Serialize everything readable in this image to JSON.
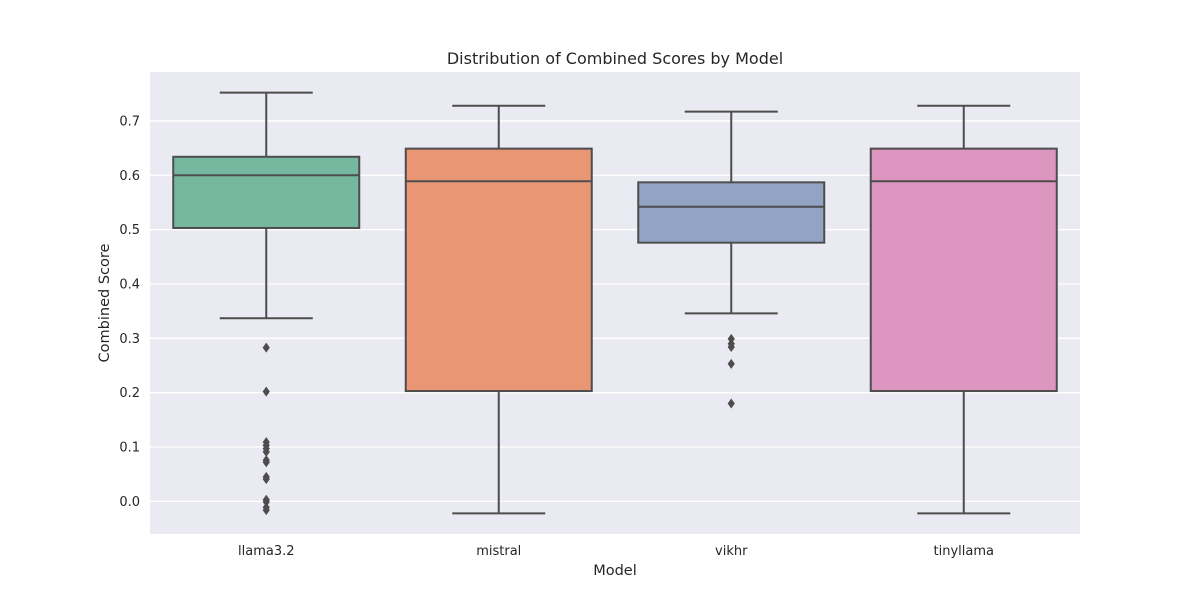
{
  "chart_data": {
    "type": "box",
    "title": "Distribution of Combined Scores by Model",
    "xlabel": "Model",
    "ylabel": "Combined Score",
    "ylim": [
      -0.06,
      0.79
    ],
    "yticks": [
      "0.0",
      "0.1",
      "0.2",
      "0.3",
      "0.4",
      "0.5",
      "0.6",
      "0.7"
    ],
    "grid": true,
    "colors": {
      "plot_background": "#eaeaf2",
      "grid": "#ffffff",
      "box_edge": "#4d4d4d"
    },
    "categories": [
      "llama3.2",
      "mistral",
      "vikhr",
      "tinyllama"
    ],
    "boxes": [
      {
        "category": "llama3.2",
        "whisker_low": 0.337,
        "q1": 0.503,
        "median": 0.6,
        "q3": 0.634,
        "whisker_high": 0.752,
        "outliers": [
          0.283,
          0.202,
          0.109,
          0.103,
          0.097,
          0.091,
          0.076,
          0.072,
          0.045,
          0.041,
          0.003,
          -0.001,
          -0.011,
          -0.016
        ],
        "color": "#76b7a0"
      },
      {
        "category": "mistral",
        "whisker_low": -0.022,
        "q1": 0.203,
        "median": 0.589,
        "q3": 0.649,
        "whisker_high": 0.728,
        "outliers": [],
        "color": "#e99675"
      },
      {
        "category": "vikhr",
        "whisker_low": 0.346,
        "q1": 0.476,
        "median": 0.542,
        "q3": 0.587,
        "whisker_high": 0.717,
        "outliers": [
          0.299,
          0.29,
          0.284,
          0.253,
          0.18
        ],
        "color": "#93a3c4"
      },
      {
        "category": "tinyllama",
        "whisker_low": -0.022,
        "q1": 0.203,
        "median": 0.589,
        "q3": 0.649,
        "whisker_high": 0.728,
        "outliers": [],
        "color": "#dc96bf"
      }
    ]
  }
}
